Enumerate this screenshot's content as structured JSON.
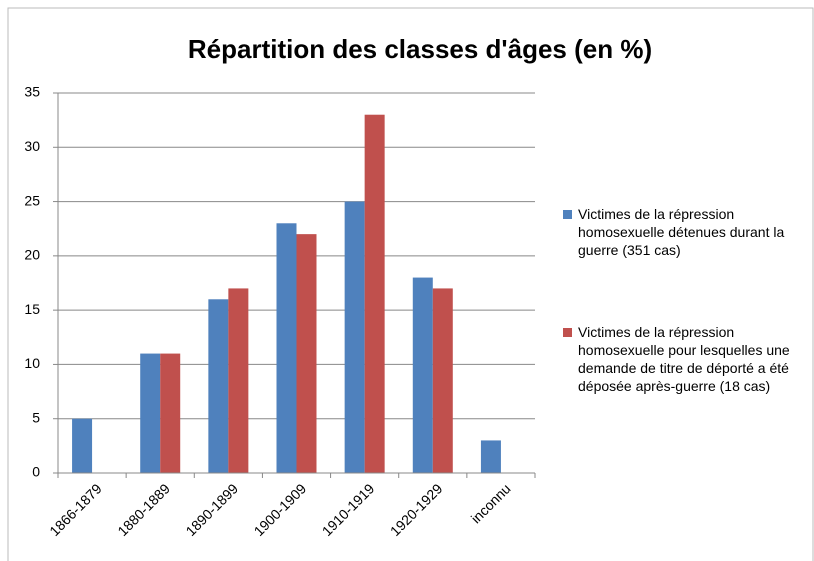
{
  "chart_data": {
    "type": "bar",
    "title": "Répartition des classes d'âges (en %)",
    "categories": [
      "1866-1879",
      "1880-1889",
      "1890-1899",
      "1900-1909",
      "1910-1919",
      "1920-1929",
      "inconnu"
    ],
    "series": [
      {
        "name": "Victimes de la répression homosexuelle détenues durant la guerre (351 cas)",
        "color": "#4f81bd",
        "values": [
          5,
          11,
          16,
          23,
          25,
          18,
          3
        ]
      },
      {
        "name": "Victimes de la répression homosexuelle pour lesquelles une demande de titre de déporté a été déposée après-guerre (18 cas)",
        "color": "#c0504d",
        "values": [
          0,
          11,
          17,
          22,
          33,
          17,
          0
        ]
      }
    ],
    "ylim": [
      0,
      35
    ],
    "yticks": [
      0,
      5,
      10,
      15,
      20,
      25,
      30,
      35
    ],
    "grid": true,
    "legend": "right"
  }
}
